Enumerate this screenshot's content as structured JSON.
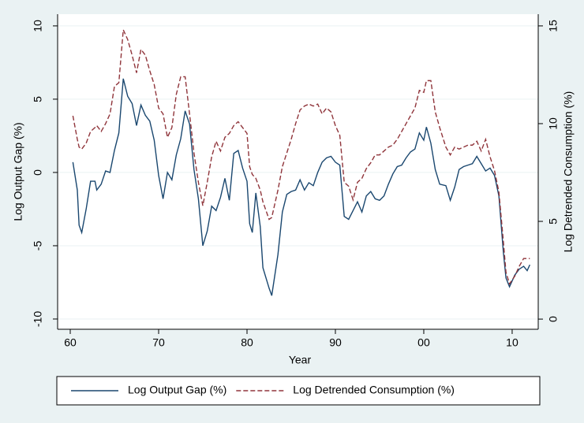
{
  "chart_data": {
    "type": "line",
    "xlabel": "Year",
    "ylabel": "Log Output Gap (%)",
    "y2label": "Log Detrended Consumption (%)",
    "x": [
      1960.3,
      1960.8,
      1961.0,
      1961.3,
      1961.8,
      1962.3,
      1962.8,
      1963.0,
      1963.5,
      1964.0,
      1964.5,
      1965.0,
      1965.5,
      1966.0,
      1966.5,
      1967.0,
      1967.5,
      1968.0,
      1968.5,
      1969.0,
      1969.5,
      1970.0,
      1970.5,
      1971.0,
      1971.5,
      1972.0,
      1972.5,
      1973.0,
      1973.5,
      1974.0,
      1974.5,
      1975.0,
      1975.5,
      1976.0,
      1976.5,
      1977.0,
      1977.5,
      1978.0,
      1978.5,
      1979.0,
      1979.5,
      1980.0,
      1980.3,
      1980.6,
      1981.0,
      1981.5,
      1981.8,
      1982.5,
      1982.8,
      1983.5,
      1984.0,
      1984.5,
      1985.0,
      1985.5,
      1986.0,
      1986.5,
      1987.0,
      1987.5,
      1988.0,
      1988.5,
      1989.0,
      1989.5,
      1990.0,
      1990.5,
      1991.0,
      1991.5,
      1992.0,
      1992.5,
      1993.0,
      1993.5,
      1994.0,
      1994.5,
      1995.0,
      1995.5,
      1996.0,
      1996.5,
      1997.0,
      1997.5,
      1998.0,
      1998.5,
      1999.0,
      1999.5,
      2000.0,
      2000.3,
      2000.8,
      2001.3,
      2001.8,
      2002.5,
      2003.0,
      2003.5,
      2004.0,
      2004.5,
      2005.0,
      2005.5,
      2006.0,
      2006.5,
      2007.0,
      2007.5,
      2008.0,
      2008.5,
      2009.0,
      2009.3,
      2009.7,
      2010.3,
      2010.8,
      2011.3,
      2011.7,
      2012.0
    ],
    "series": [
      {
        "name": "Log Output Gap (%)",
        "color": "#1a476f",
        "dash": false,
        "axis": "y",
        "values": [
          0.7,
          -1.2,
          -3.6,
          -4.1,
          -2.5,
          -0.6,
          -0.6,
          -1.2,
          -0.8,
          0.1,
          0.0,
          1.5,
          2.7,
          6.4,
          5.2,
          4.7,
          3.2,
          4.6,
          3.9,
          3.5,
          2.2,
          -0.2,
          -1.8,
          0.0,
          -0.5,
          1.2,
          2.3,
          4.2,
          3.3,
          0.2,
          -1.8,
          -5.0,
          -4.0,
          -2.3,
          -2.6,
          -1.7,
          -0.4,
          -1.9,
          1.3,
          1.5,
          0.3,
          -0.6,
          -3.5,
          -4.1,
          -1.4,
          -3.7,
          -6.5,
          -7.9,
          -8.4,
          -5.6,
          -2.7,
          -1.5,
          -1.3,
          -1.2,
          -0.5,
          -1.2,
          -0.7,
          -0.9,
          0.0,
          0.7,
          1.0,
          1.1,
          0.7,
          0.5,
          -3.0,
          -3.2,
          -2.6,
          -2.0,
          -2.7,
          -1.6,
          -1.3,
          -1.8,
          -1.9,
          -1.6,
          -0.8,
          -0.1,
          0.4,
          0.5,
          1.0,
          1.4,
          1.6,
          2.7,
          2.2,
          3.1,
          2.0,
          0.2,
          -0.8,
          -0.9,
          -1.9,
          -1.0,
          0.2,
          0.4,
          0.5,
          0.6,
          1.1,
          0.6,
          0.1,
          0.3,
          -0.2,
          -1.6,
          -5.4,
          -7.2,
          -7.8,
          -7.0,
          -6.6,
          -6.4,
          -6.7,
          -6.3
        ]
      },
      {
        "name": "Log Detrended Consumption (%)",
        "color": "#90353b",
        "dash": true,
        "axis": "y2",
        "values": [
          10.4,
          9.2,
          8.8,
          8.7,
          9.0,
          9.6,
          9.8,
          9.9,
          9.6,
          10.0,
          10.5,
          11.9,
          12.1,
          14.8,
          14.3,
          13.5,
          12.6,
          13.8,
          13.5,
          12.7,
          12.0,
          10.8,
          10.5,
          9.3,
          9.8,
          11.5,
          12.4,
          12.4,
          10.5,
          8.5,
          7.0,
          5.8,
          7.0,
          8.3,
          9.1,
          8.6,
          9.3,
          9.5,
          9.9,
          10.1,
          9.8,
          9.5,
          7.8,
          7.4,
          7.2,
          6.6,
          6.0,
          5.1,
          5.2,
          6.6,
          7.8,
          8.5,
          9.2,
          10.0,
          10.7,
          10.9,
          11.0,
          10.9,
          11.0,
          10.5,
          10.8,
          10.6,
          9.9,
          9.4,
          7.0,
          6.8,
          6.1,
          7.0,
          7.2,
          7.7,
          8.0,
          8.4,
          8.4,
          8.6,
          8.8,
          8.9,
          9.2,
          9.6,
          10.0,
          10.4,
          10.8,
          11.7,
          11.6,
          12.2,
          12.2,
          10.6,
          9.8,
          8.8,
          8.4,
          8.8,
          8.7,
          8.8,
          8.9,
          8.9,
          9.1,
          8.6,
          9.2,
          8.3,
          7.6,
          6.5,
          4.0,
          2.4,
          1.8,
          2.2,
          2.7,
          3.1,
          3.1,
          3.1
        ]
      }
    ],
    "xlim": [
      1958.57,
      2012.95
    ],
    "xticks": [
      {
        "value": 1960,
        "label": "60"
      },
      {
        "value": 1970,
        "label": "70"
      },
      {
        "value": 1980,
        "label": "80"
      },
      {
        "value": 1990,
        "label": "90"
      },
      {
        "value": 2000,
        "label": "00"
      },
      {
        "value": 2010,
        "label": "10"
      }
    ],
    "ylim": [
      -10.7,
      10.8
    ],
    "yticks": [
      -10,
      -5,
      0,
      5,
      10
    ],
    "y2lim": [
      -0.52,
      15.6
    ],
    "y2ticks": [
      0,
      5,
      10,
      15
    ],
    "grid": true,
    "legend": "bottom"
  }
}
